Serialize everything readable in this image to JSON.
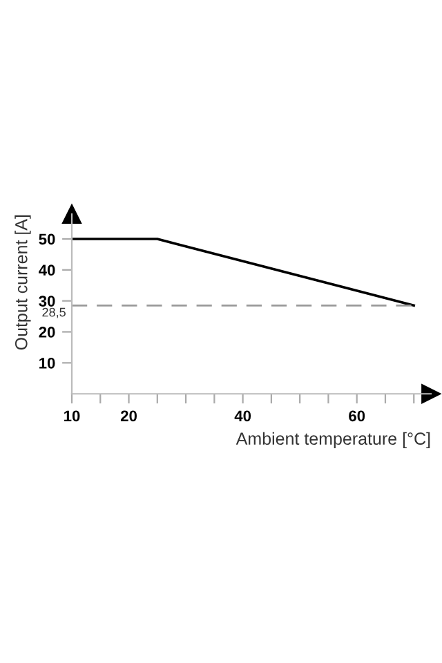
{
  "chart_data": {
    "type": "line",
    "xlabel": "Ambient temperature [°C]",
    "ylabel": "Output current [A]",
    "x": [
      10,
      25,
      70
    ],
    "series": [
      {
        "color": "#000000",
        "values": [
          50,
          50,
          28.5
        ]
      }
    ],
    "xlim": [
      10,
      73
    ],
    "ylim": [
      0,
      58
    ],
    "xticks": [
      10,
      {
        "value": 15,
        "label": null
      },
      20,
      {
        "value": 25,
        "label": null
      },
      {
        "value": 30,
        "label": null
      },
      {
        "value": 35,
        "label": null
      },
      40,
      {
        "value": 45,
        "label": null
      },
      {
        "value": 50,
        "label": null
      },
      {
        "value": 55,
        "label": null
      },
      60,
      {
        "value": 65,
        "label": null
      },
      {
        "value": 70,
        "label": null
      }
    ],
    "yticks": [
      10,
      20,
      30,
      40,
      50
    ],
    "ref_lines": [
      {
        "axis": "y",
        "value": 28.5,
        "label": "28,5",
        "color": "#999999",
        "line_style": "dashed"
      }
    ],
    "grid": false,
    "marker": "none",
    "line_style": "solid"
  }
}
